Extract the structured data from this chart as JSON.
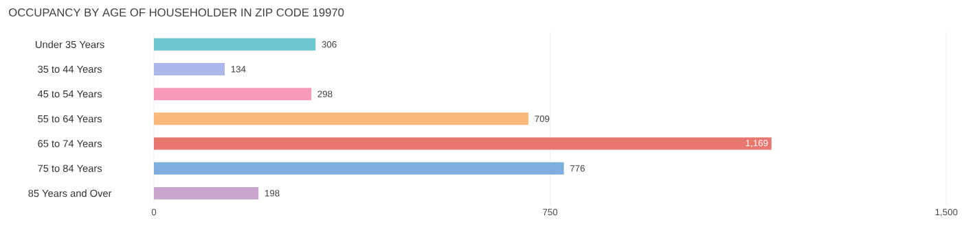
{
  "chart_data": {
    "type": "bar",
    "orientation": "horizontal",
    "title": "OCCUPANCY BY AGE OF HOUSEHOLDER IN ZIP CODE 19970",
    "categories": [
      "Under 35 Years",
      "35 to 44 Years",
      "45 to 54 Years",
      "55 to 64 Years",
      "65 to 74 Years",
      "75 to 84 Years",
      "85 Years and Over"
    ],
    "values": [
      306,
      134,
      298,
      709,
      1169,
      776,
      198
    ],
    "value_labels": [
      "306",
      "134",
      "298",
      "709",
      "1,169",
      "776",
      "198"
    ],
    "colors": [
      "#6ec8cf",
      "#aab8ec",
      "#f59bb9",
      "#f9b97a",
      "#e8776f",
      "#7eaee0",
      "#c9a6cc"
    ],
    "xlim": [
      0,
      1500
    ],
    "xticks": [
      0,
      750,
      {
        "value": 1500,
        "label": "1,500"
      }
    ],
    "grid": "x"
  }
}
